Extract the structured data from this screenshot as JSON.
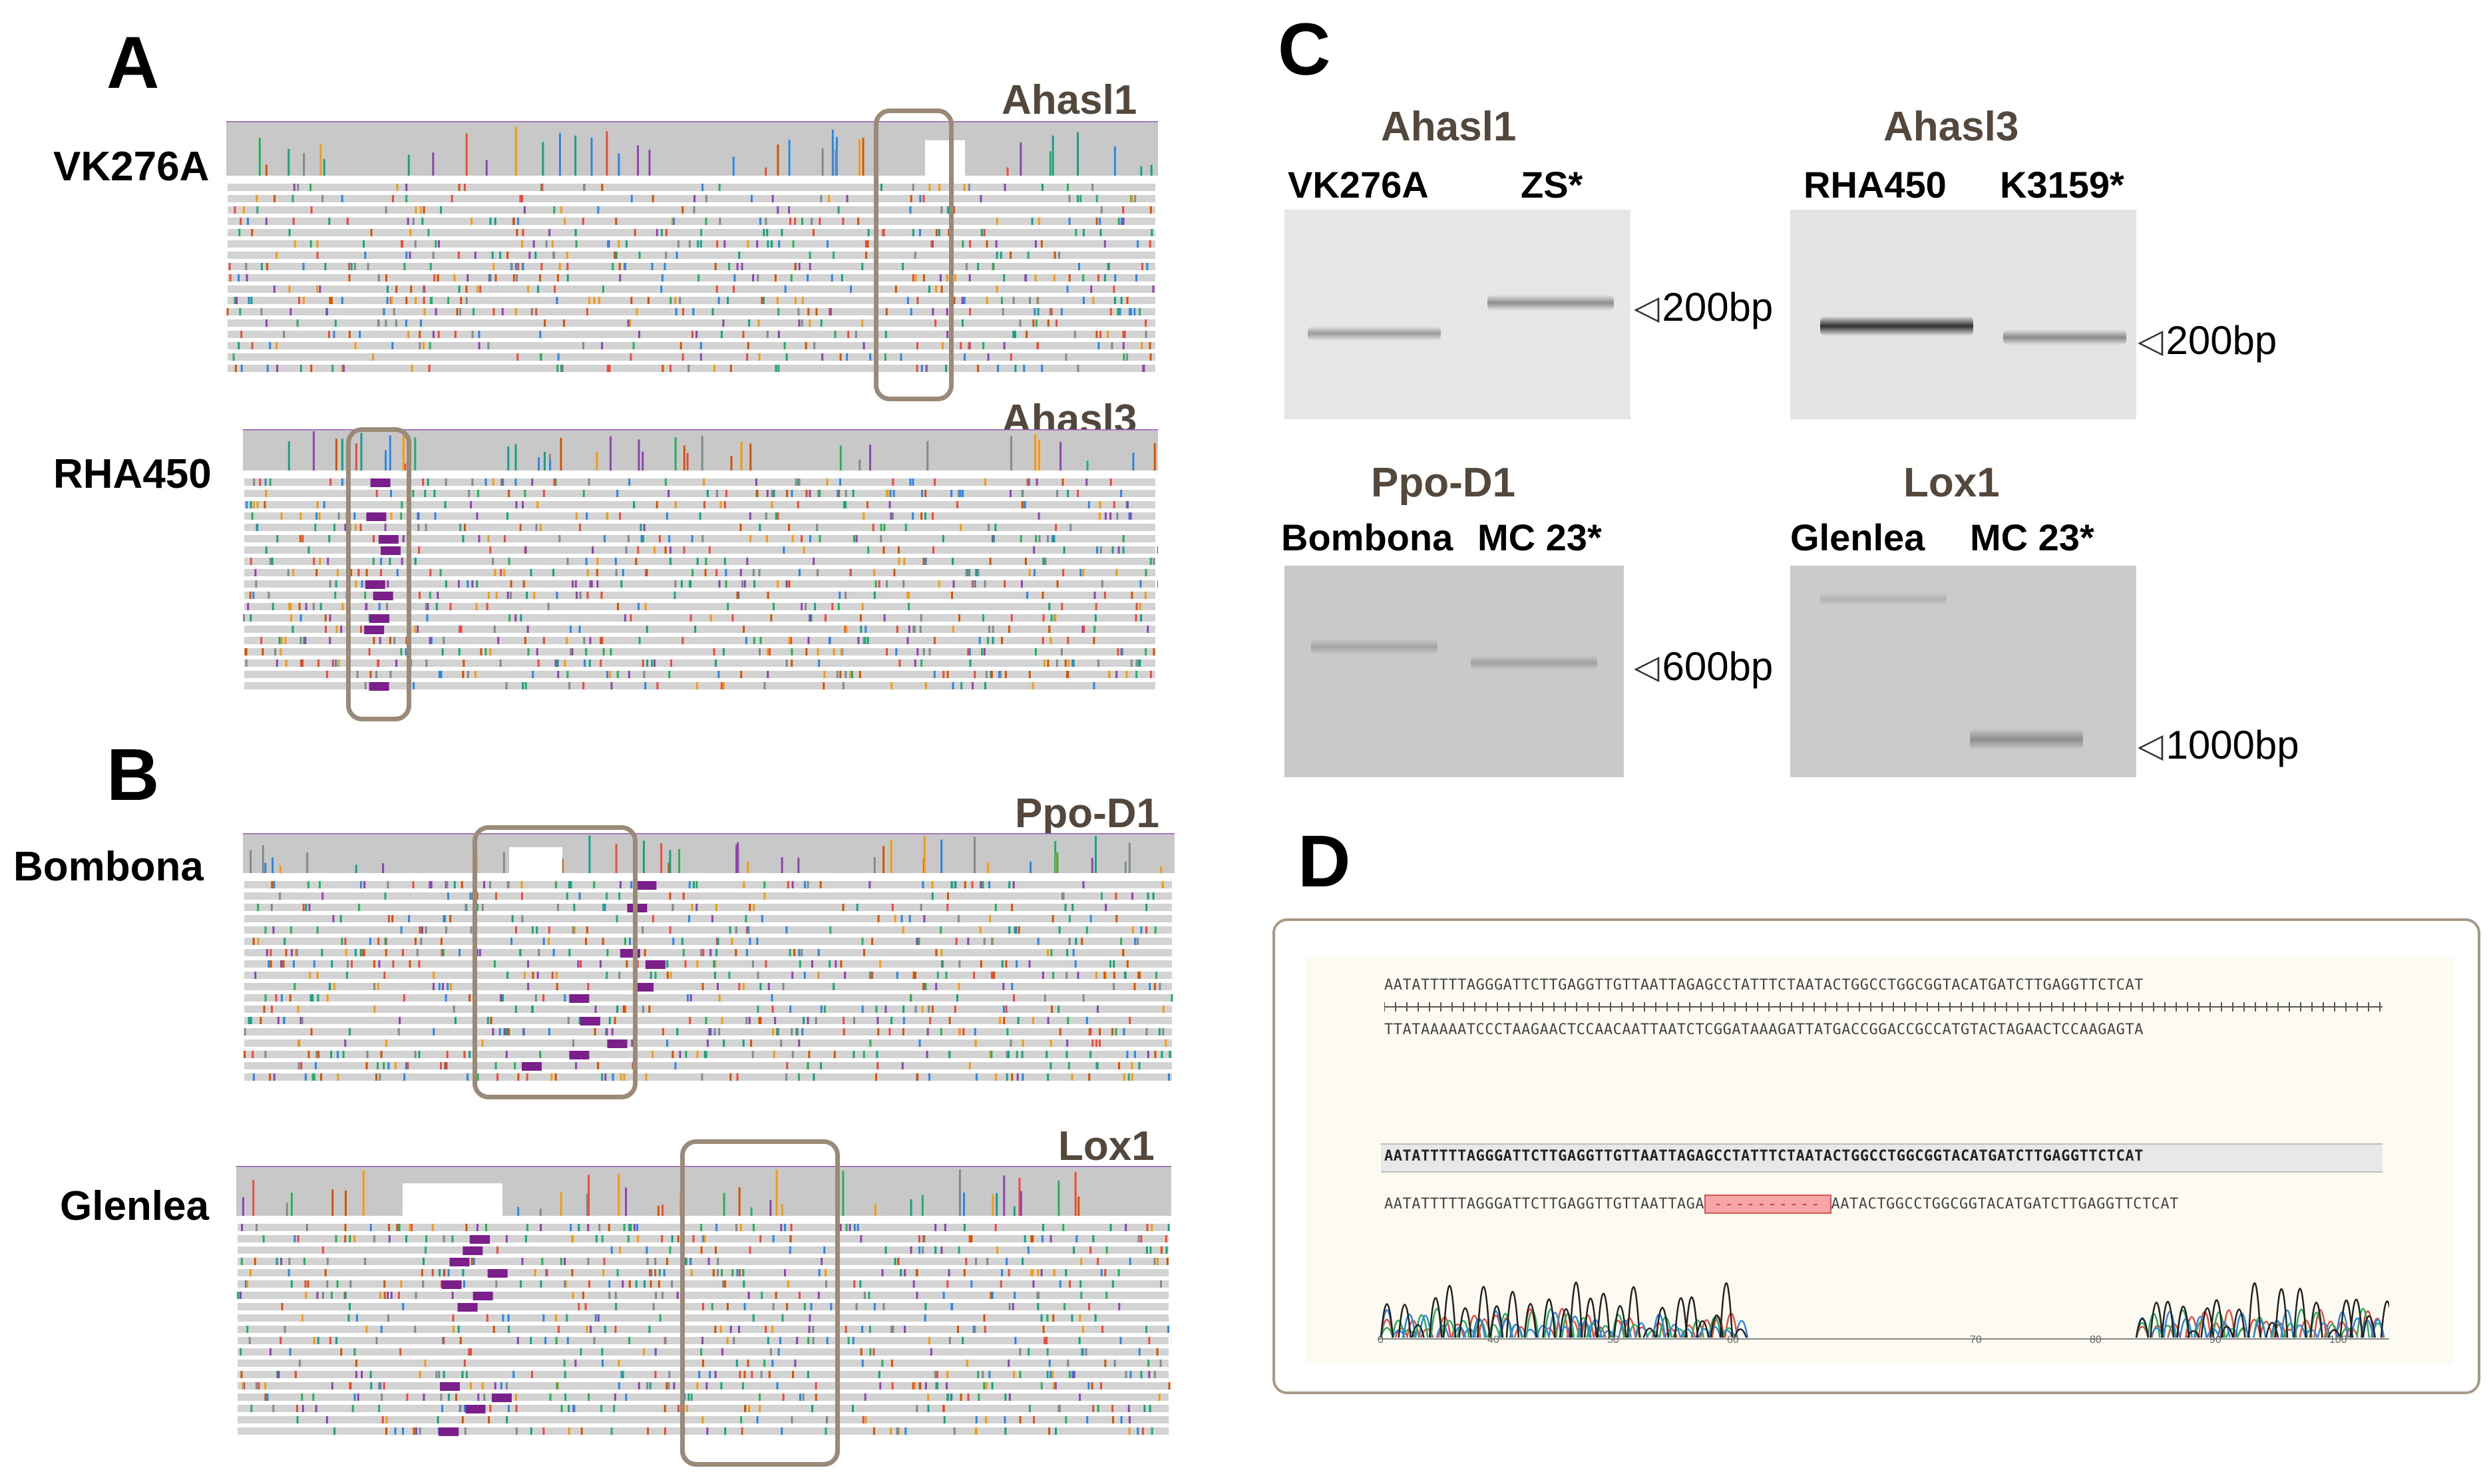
{
  "panels": {
    "a": "A",
    "b": "B",
    "c": "C",
    "d": "D"
  },
  "panelA": {
    "tracks": [
      {
        "sample": "VK276A",
        "gene": "Ahasl1"
      },
      {
        "sample": "RHA450",
        "gene": "Ahasl3"
      }
    ]
  },
  "panelB": {
    "tracks": [
      {
        "sample": "Bombona",
        "gene": "Ppo-D1"
      },
      {
        "sample": "Glenlea",
        "gene": "Lox1"
      }
    ]
  },
  "panelC": {
    "gels": [
      {
        "gene": "Ahasl1",
        "lane1": "VK276A",
        "lane2": "ZS*",
        "marker": "200bp"
      },
      {
        "gene": "Ahasl3",
        "lane1": "RHA450",
        "lane2": "K3159*",
        "marker": "200bp"
      },
      {
        "gene": "Ppo-D1",
        "lane1": "Bombona",
        "lane2": "MC 23*",
        "marker": "600bp"
      },
      {
        "gene": "Lox1",
        "lane1": "Glenlea",
        "lane2": "MC 23*",
        "marker": "1000bp"
      }
    ]
  },
  "panelD": {
    "ref_top": "AATATTTTTAGGGATTCTTGAGGTTGTTAATTAGAGCCTATTTCTAATACTGGCCTGGCGGTACATGATCTTGAGGTTCTCAT",
    "ref_bottom": "TTATAAAAATCCCTAAGAACTCCAACAATTAATCTCGGATAAAGATTATGACCGGACCGCCATGTACTAGAACTCCAAGAGTA",
    "consensus": "AATATTTTTAGGGATTCTTGAGGTTGTTAATTAGAGCCTATTTCTAATACTGGCCTGGCGGTACATGATCTTGAGGTTCTCAT",
    "read_left": "AATATTTTTAGGGATTCTTGAGGTTGTTAATTAGA",
    "read_gap": "----------",
    "read_right": "AATACTGGCCTGGCGGTACATGATCTTGAGGTTCTCAT",
    "axis_ticks": [
      "0",
      "40",
      "50",
      "60",
      "70",
      "80",
      "90",
      "100"
    ]
  }
}
